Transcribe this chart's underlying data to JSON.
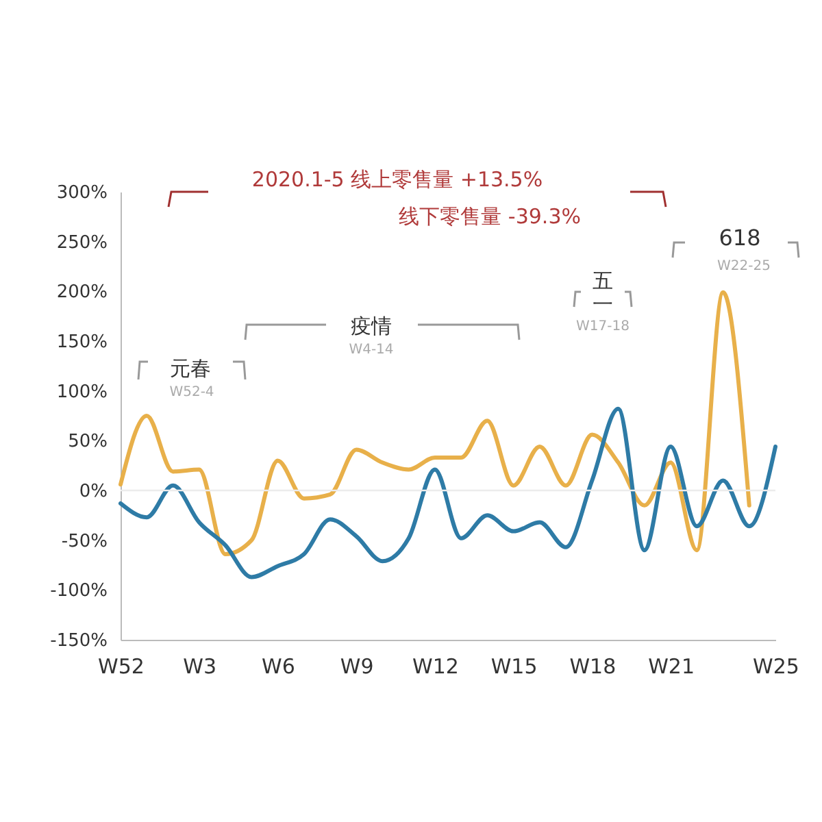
{
  "chart_data": {
    "type": "line",
    "categories": [
      "W52",
      null,
      null,
      "W3",
      null,
      null,
      "W6",
      null,
      null,
      "W9",
      null,
      null,
      "W12",
      null,
      null,
      "W15",
      null,
      null,
      "W18",
      null,
      null,
      "W21",
      null,
      null,
      null,
      "W25"
    ],
    "series": [
      {
        "color": "#e8b04a",
        "values": [
          6,
          75,
          19,
          21,
          -64,
          -50,
          30,
          -8,
          -4,
          41,
          28,
          21,
          33,
          33,
          70,
          5,
          44,
          5,
          56,
          28,
          -15,
          28,
          -60,
          199,
          -15,
          null
        ]
      },
      {
        "color": "#2e7ba6",
        "values": [
          -13,
          -27,
          5,
          -32,
          -55,
          -87,
          -76,
          -64,
          -29,
          -46,
          -71,
          -48,
          21,
          -48,
          -25,
          -41,
          -32,
          -57,
          10,
          82,
          -60,
          44,
          -36,
          10,
          -36,
          44
        ]
      }
    ],
    "ylim": [
      -150,
      300
    ],
    "yticks": [
      {
        "value": -150,
        "label": "-150%"
      },
      {
        "value": -100,
        "label": "-100%"
      },
      {
        "value": -50,
        "label": "-50%"
      },
      {
        "value": 0,
        "label": "0%"
      },
      {
        "value": 50,
        "label": "50%"
      },
      {
        "value": 100,
        "label": "100%"
      },
      {
        "value": 150,
        "label": "150%"
      },
      {
        "value": 200,
        "label": "200%"
      },
      {
        "value": 250,
        "label": "250%"
      },
      {
        "value": 300,
        "label": "300%"
      }
    ],
    "ref_lines": [
      {
        "axis": "y",
        "value": 0,
        "color": "#ececec"
      }
    ],
    "annotations": [
      "2020.1-5 线上零售量 +13.5%",
      "线下零售量 -39.3%",
      "元春",
      "W52-4",
      "疫情",
      "W4-14",
      "五一",
      "W17-18",
      "618",
      "W22-25"
    ],
    "grid": false,
    "legend": false,
    "marker": "none",
    "line_style": "solid"
  }
}
